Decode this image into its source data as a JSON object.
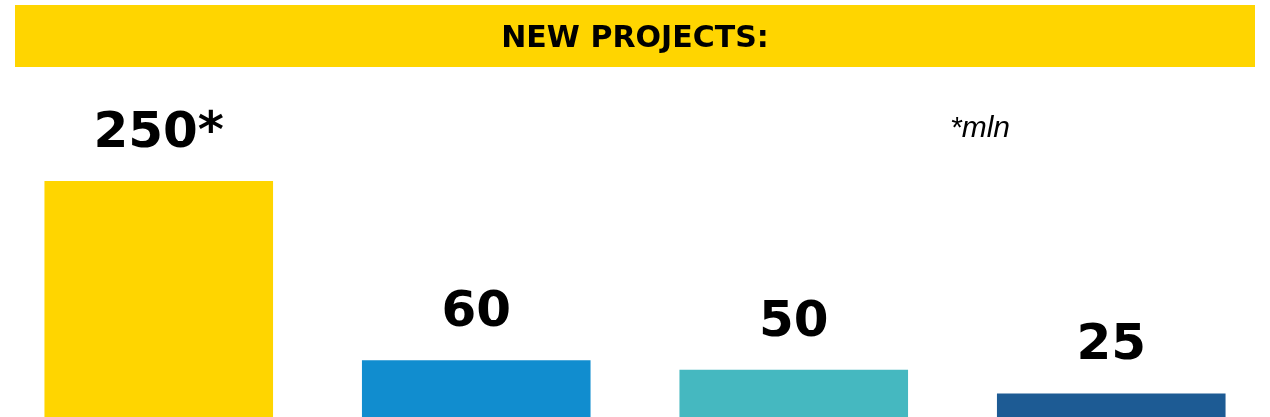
{
  "chart_data": {
    "type": "bar",
    "title": "NEW PROJECTS:",
    "categories": [
      null,
      null,
      null,
      null
    ],
    "values": [
      250,
      60,
      50,
      25
    ],
    "colors": [
      "#ffd500",
      "#118dcf",
      "#45b8c0",
      "#1d5b94"
    ],
    "value_labels": [
      "250*",
      "60",
      "50",
      "25"
    ],
    "annotations": [
      "*mln"
    ],
    "legend": false
  }
}
